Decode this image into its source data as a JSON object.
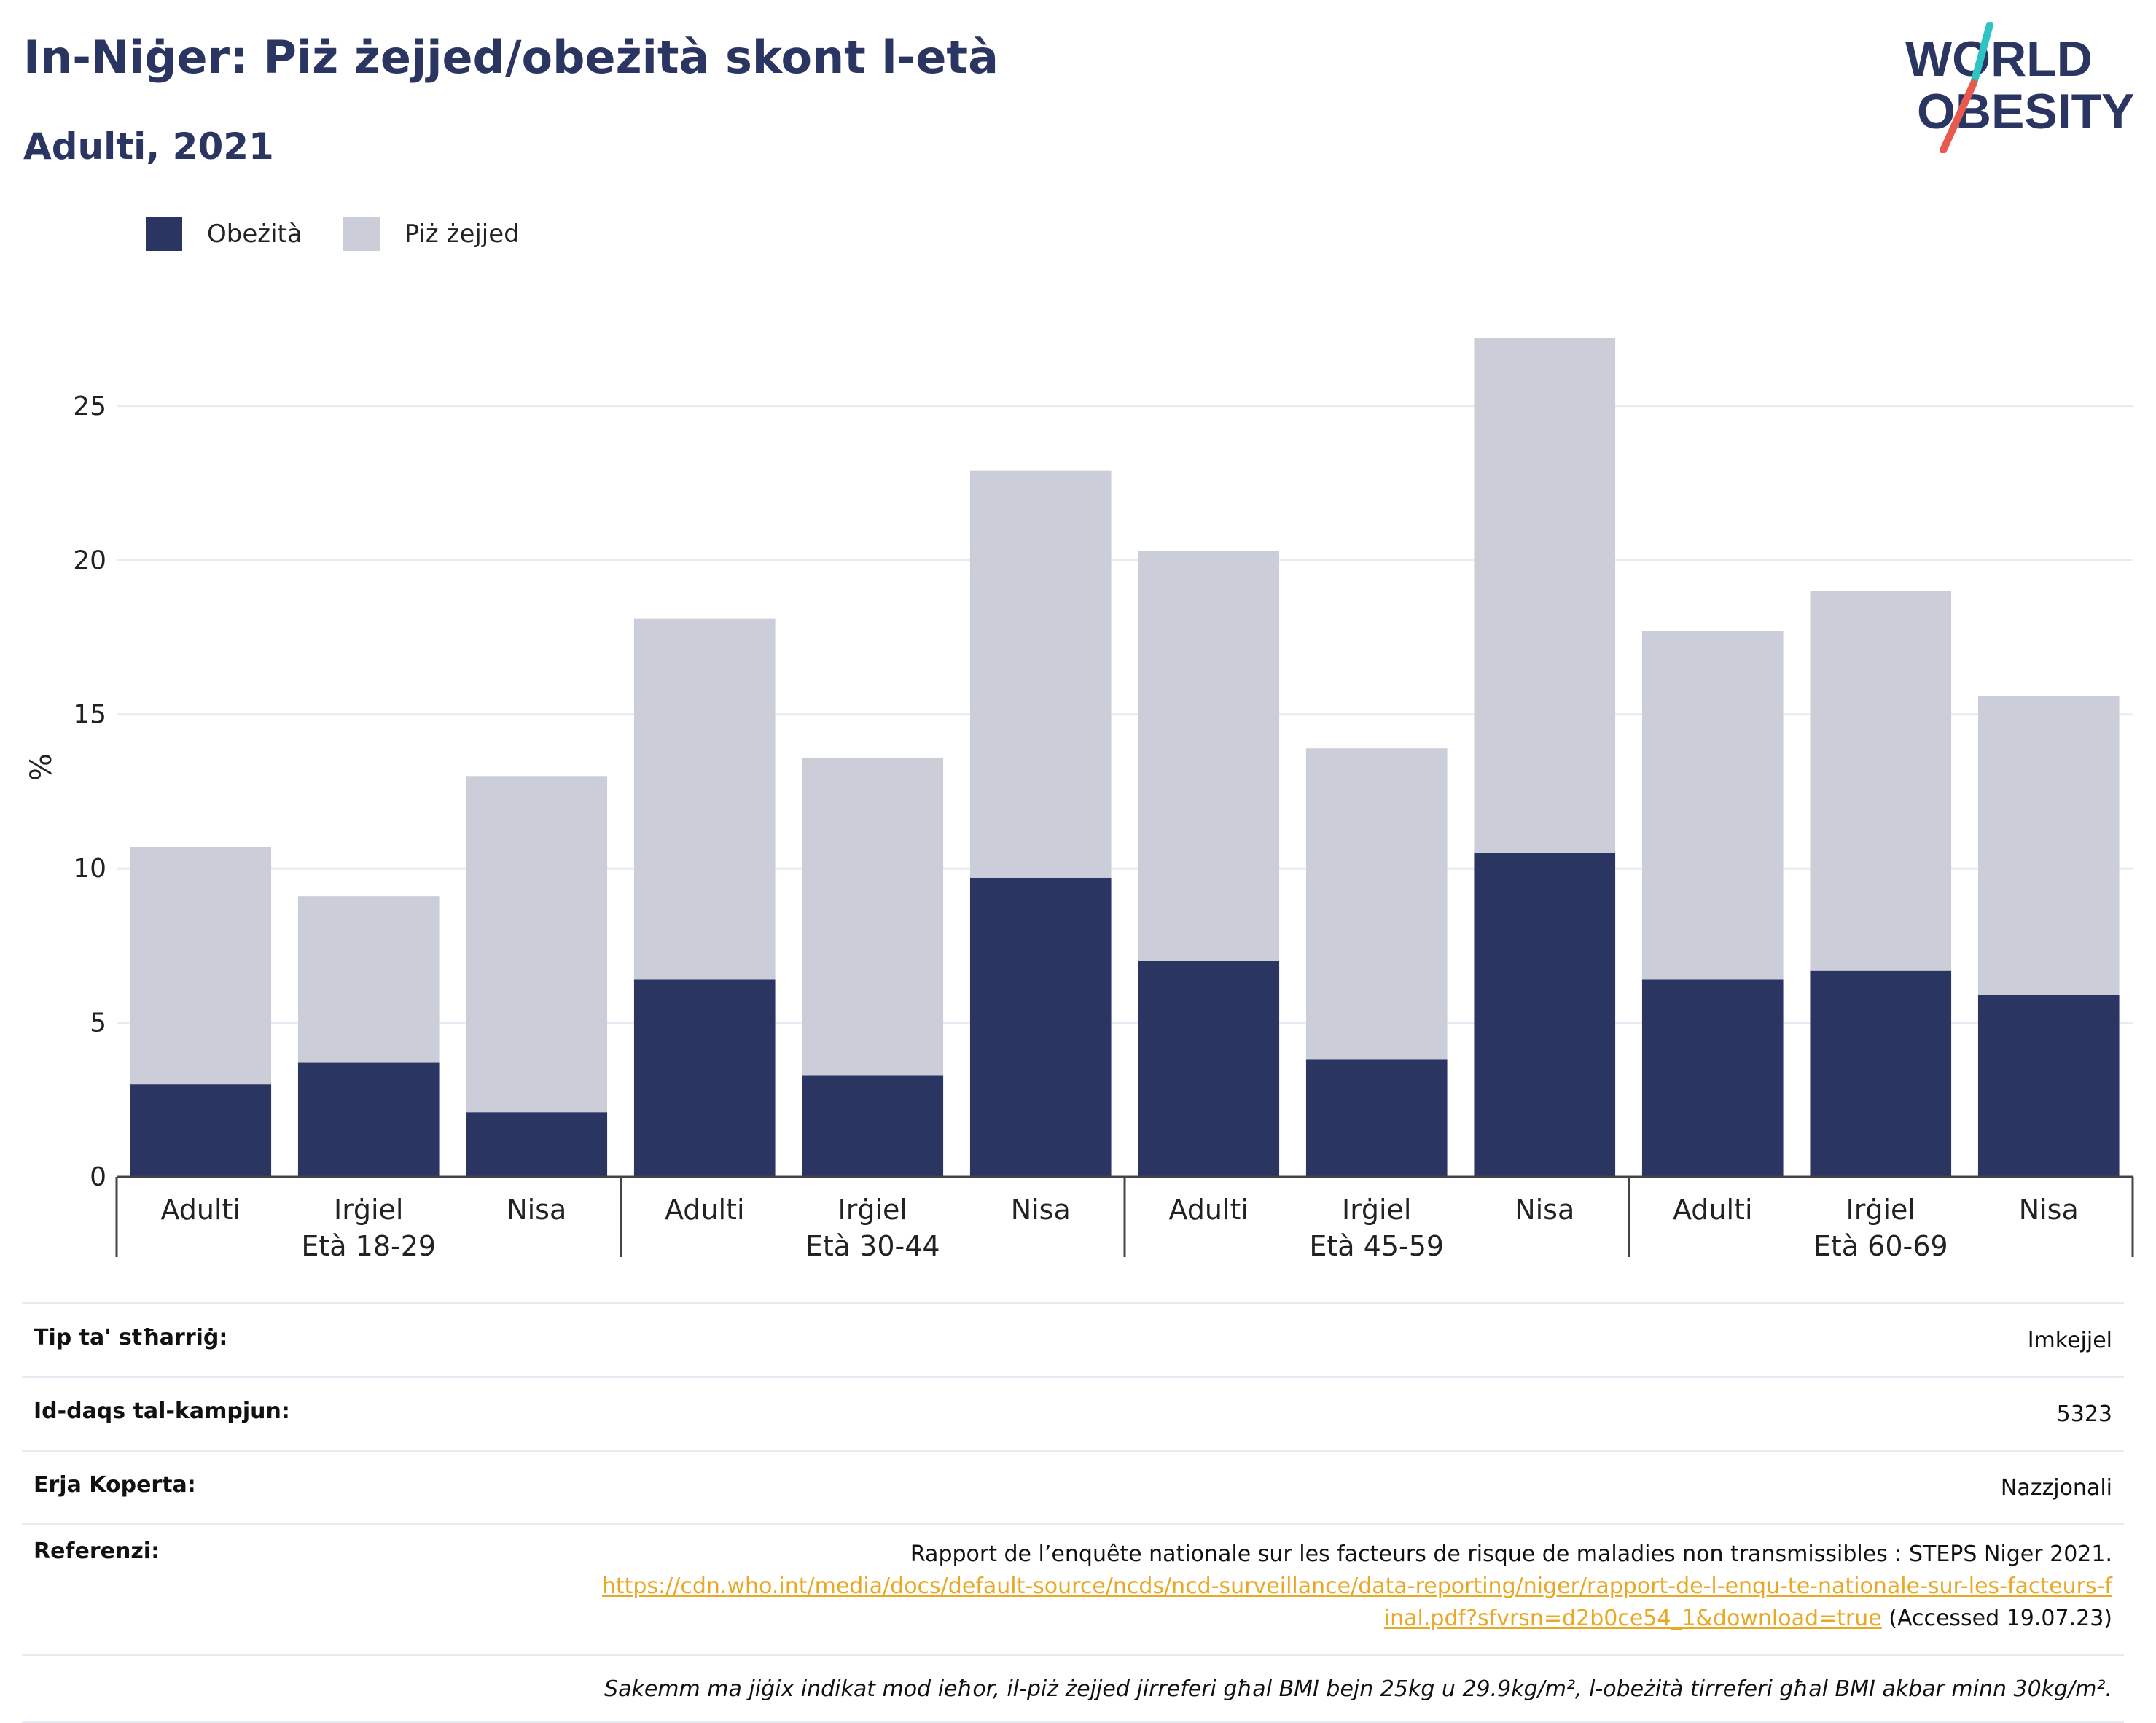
{
  "header": {
    "title": "In-Niġer: Piż żejjed/obeżità skont l-età",
    "subtitle": "Adulti, 2021"
  },
  "logo": {
    "line1": "WORLD",
    "line2": "OBESITY",
    "accent_colors": [
      "#2ec4c4",
      "#e85a4f"
    ]
  },
  "legend": [
    {
      "label": "Obeżità",
      "color": "#2a3562"
    },
    {
      "label": "Piż żejjed",
      "color": "#cbcdd8"
    }
  ],
  "chart_data": {
    "type": "bar",
    "stacked": true,
    "ylabel": "%",
    "ylim": [
      0,
      28
    ],
    "yticks": [
      0,
      5,
      10,
      15,
      20,
      25
    ],
    "grid": true,
    "legend_position": "top-left",
    "groups": [
      {
        "label": "Età 18-29",
        "categories": [
          "Adulti",
          "Irġiel",
          "Nisa"
        ]
      },
      {
        "label": "Età 30-44",
        "categories": [
          "Adulti",
          "Irġiel",
          "Nisa"
        ]
      },
      {
        "label": "Età 45-59",
        "categories": [
          "Adulti",
          "Irġiel",
          "Nisa"
        ]
      },
      {
        "label": "Età 60-69",
        "categories": [
          "Adulti",
          "Irġiel",
          "Nisa"
        ]
      }
    ],
    "series": [
      {
        "name": "Obeżità",
        "color": "#2a3562",
        "values": [
          3.0,
          3.7,
          2.1,
          6.4,
          3.3,
          9.7,
          7.0,
          3.8,
          10.5,
          6.4,
          6.7,
          5.9
        ]
      },
      {
        "name": "Piż żejjed",
        "color": "#cbcdd8",
        "values": [
          7.7,
          5.4,
          10.9,
          11.7,
          10.3,
          13.2,
          13.3,
          10.1,
          16.7,
          11.3,
          12.3,
          9.7
        ]
      }
    ]
  },
  "info": {
    "survey_type_label": "Tip ta' stħarriġ:",
    "survey_type_value": "Imkejjel",
    "sample_size_label": "Id-daqs tal-kampjun:",
    "sample_size_value": "5323",
    "coverage_label": "Erja Koperta:",
    "coverage_value": "Nazzjonali",
    "references_label": "Referenzi:",
    "reference_text": "Rapport de l’enquête nationale sur les facteurs de risque de maladies non transmissibles : STEPS Niger 2021.",
    "reference_url": "https://cdn.who.int/media/docs/default-source/ncds/ncd-surveillance/data-reporting/niger/rapport-de-l-enqu-te-nationale-sur-les-facteurs-final.pdf?sfvrsn=d2b0ce54_1&download=true",
    "reference_accessed": "(Accessed 19.07.23)",
    "footnote": "Sakemm ma jiġix indikat mod ieħor, il-piż żejjed jirreferi għal BMI bejn 25kg u 29.9kg/m², l-obeżità tirreferi għal BMI akbar minn 30kg/m²."
  }
}
